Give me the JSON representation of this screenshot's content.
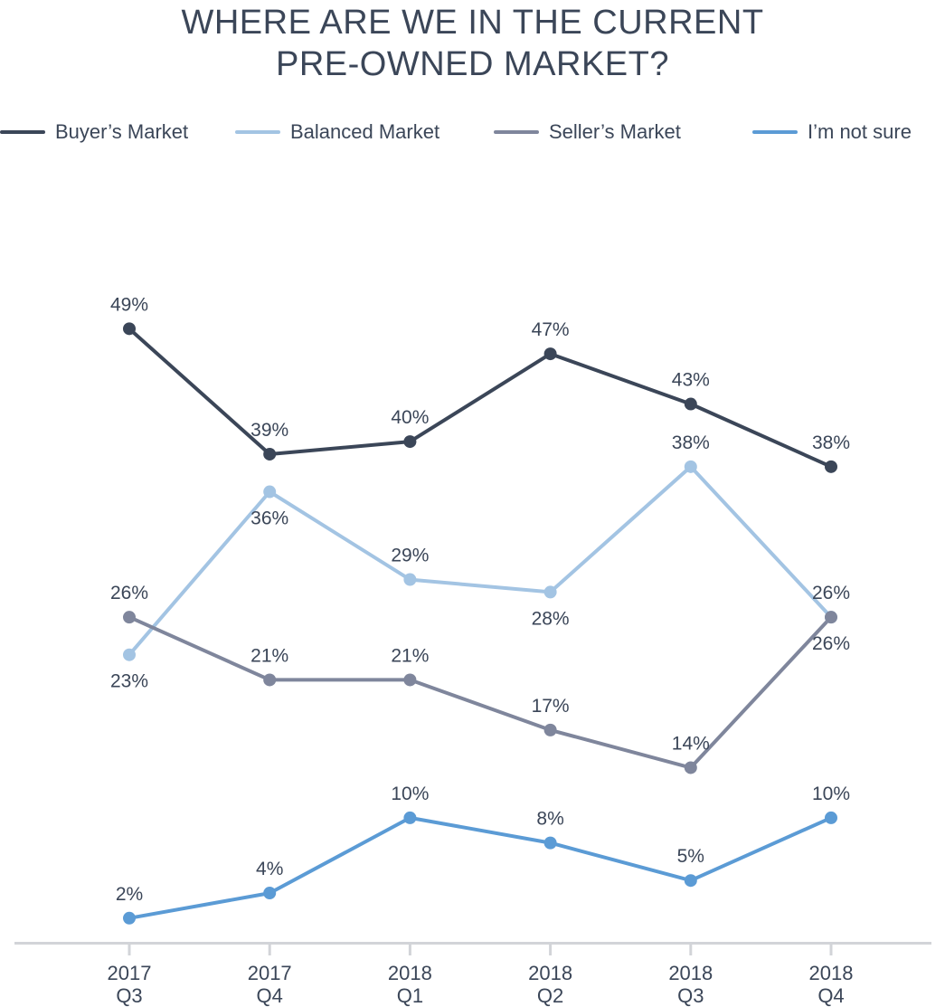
{
  "chart_data": {
    "type": "line",
    "title_lines": [
      "WHERE ARE WE IN THE CURRENT",
      "PRE-OWNED MARKET?"
    ],
    "categories": [
      [
        "2017",
        "Q3"
      ],
      [
        "2017",
        "Q4"
      ],
      [
        "2018",
        "Q1"
      ],
      [
        "2018",
        "Q2"
      ],
      [
        "2018",
        "Q3"
      ],
      [
        "2018",
        "Q4"
      ]
    ],
    "ylim": [
      0,
      55
    ],
    "grid": false,
    "legend_position": "top",
    "series": [
      {
        "name": "Buyer’s Market",
        "color": "#3b4658",
        "values": [
          49,
          39,
          40,
          47,
          43,
          38
        ],
        "labels": [
          "49%",
          "39%",
          "40%",
          "47%",
          "43%",
          "38%"
        ],
        "label_pos": [
          "above",
          "above",
          "above",
          "above",
          "above",
          "above"
        ]
      },
      {
        "name": "Balanced Market",
        "color": "#a3c4e3",
        "values": [
          23,
          36,
          29,
          28,
          38,
          26
        ],
        "labels": [
          "23%",
          "36%",
          "29%",
          "28%",
          "38%",
          "26%"
        ],
        "label_pos": [
          "below",
          "below",
          "above",
          "below",
          "above",
          "above"
        ]
      },
      {
        "name": "Seller’s Market",
        "color": "#7f869c",
        "values": [
          26,
          21,
          21,
          17,
          14,
          26
        ],
        "labels": [
          "26%",
          "21%",
          "21%",
          "17%",
          "14%",
          "26%"
        ],
        "label_pos": [
          "above",
          "above",
          "above",
          "above",
          "above",
          "below"
        ]
      },
      {
        "name": "I’m not sure",
        "color": "#5b9bd5",
        "values": [
          2,
          4,
          10,
          8,
          5,
          10
        ],
        "labels": [
          "2%",
          "4%",
          "10%",
          "8%",
          "5%",
          "10%"
        ],
        "label_pos": [
          "above",
          "above",
          "above",
          "above",
          "above",
          "above"
        ]
      }
    ]
  }
}
